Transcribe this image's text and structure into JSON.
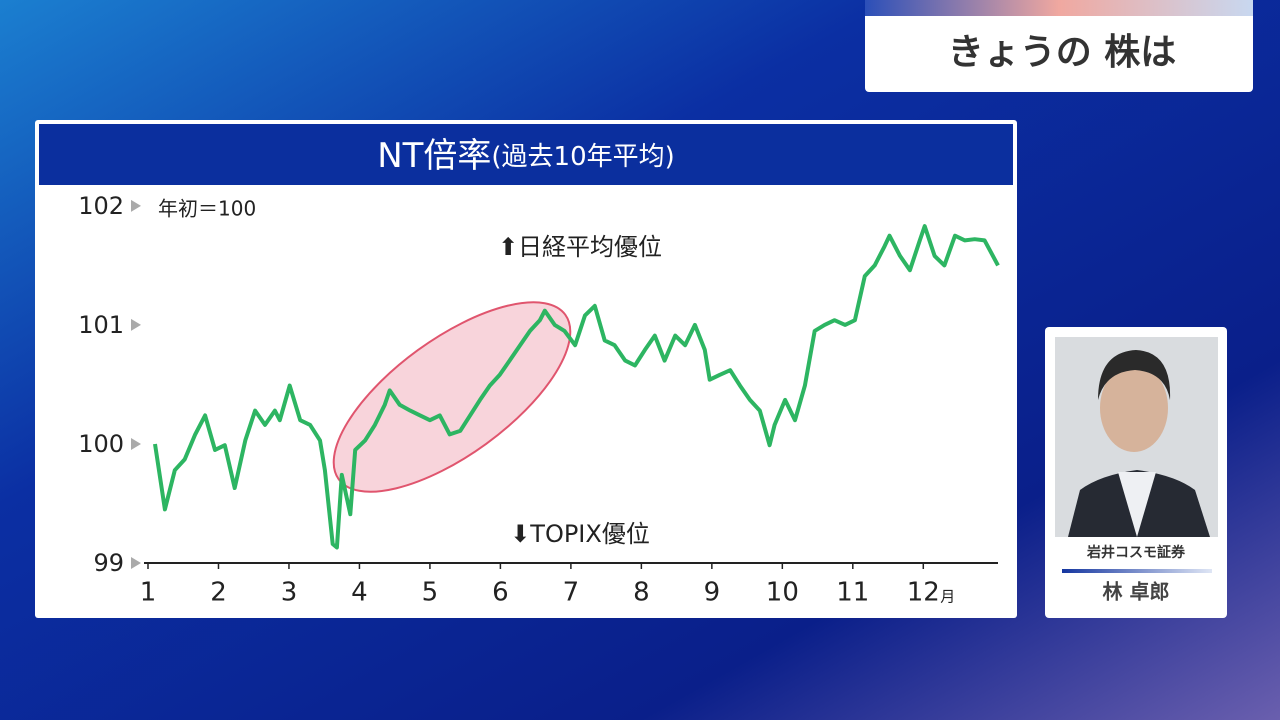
{
  "header": {
    "title": "きょうの 株は"
  },
  "guest": {
    "company": "岩井コスモ証券",
    "name": "林 卓郎"
  },
  "chart_data": {
    "type": "line",
    "title": "NT倍率",
    "subtitle": "(過去10年平均)",
    "annotations": {
      "base": "年初＝100",
      "upper": "⬆日経平均優位",
      "lower": "⬇TOPIX優位"
    },
    "xunit": "月",
    "xlim": [
      1,
      13.06
    ],
    "xticks": [
      1,
      2,
      3,
      4,
      5,
      6,
      7,
      8,
      9,
      10,
      11,
      12
    ],
    "ylim": [
      99,
      102.1
    ],
    "yticks": [
      99,
      100,
      101,
      102
    ],
    "series": [
      {
        "name": "NT倍率",
        "color": "#2db562",
        "x": [
          1.1,
          1.24,
          1.38,
          1.52,
          1.67,
          1.81,
          1.95,
          2.09,
          2.23,
          2.38,
          2.52,
          2.66,
          2.8,
          2.87,
          3.01,
          3.16,
          3.3,
          3.44,
          3.51,
          3.62,
          3.68,
          3.75,
          3.87,
          3.94,
          4.08,
          4.22,
          4.36,
          4.43,
          4.57,
          4.72,
          4.86,
          5.0,
          5.14,
          5.28,
          5.43,
          5.57,
          5.71,
          5.85,
          5.99,
          6.13,
          6.28,
          6.42,
          6.56,
          6.63,
          6.77,
          6.91,
          7.06,
          7.2,
          7.34,
          7.48,
          7.62,
          7.77,
          7.91,
          8.05,
          8.19,
          8.33,
          8.48,
          8.62,
          8.76,
          8.9,
          8.97,
          9.11,
          9.26,
          9.4,
          9.54,
          9.68,
          9.82,
          9.89,
          10.04,
          10.18,
          10.32,
          10.46,
          10.6,
          10.74,
          10.89,
          11.03,
          11.17,
          11.31,
          11.45,
          11.52,
          11.67,
          11.81,
          11.95,
          12.02,
          12.16,
          12.3,
          12.45,
          12.59,
          12.73,
          12.87,
          13.06
        ],
        "values": [
          100.0,
          99.45,
          99.78,
          99.87,
          100.08,
          100.24,
          99.95,
          99.99,
          99.63,
          100.03,
          100.28,
          100.16,
          100.28,
          100.2,
          100.49,
          100.2,
          100.16,
          100.03,
          99.78,
          99.16,
          99.13,
          99.74,
          99.41,
          99.95,
          100.03,
          100.16,
          100.33,
          100.45,
          100.33,
          100.28,
          100.24,
          100.2,
          100.24,
          100.08,
          100.11,
          100.24,
          100.37,
          100.49,
          100.58,
          100.7,
          100.83,
          100.95,
          101.04,
          101.12,
          101.0,
          100.95,
          100.83,
          101.08,
          101.16,
          100.87,
          100.83,
          100.7,
          100.66,
          100.79,
          100.91,
          100.7,
          100.91,
          100.83,
          101.0,
          100.79,
          100.54,
          100.58,
          100.62,
          100.49,
          100.37,
          100.28,
          99.99,
          100.16,
          100.37,
          100.2,
          100.49,
          100.95,
          101.0,
          101.04,
          101.0,
          101.04,
          101.41,
          101.5,
          101.66,
          101.75,
          101.58,
          101.46,
          101.71,
          101.83,
          101.58,
          101.5,
          101.75,
          101.71,
          101.72,
          101.71,
          101.5
        ]
      }
    ]
  }
}
